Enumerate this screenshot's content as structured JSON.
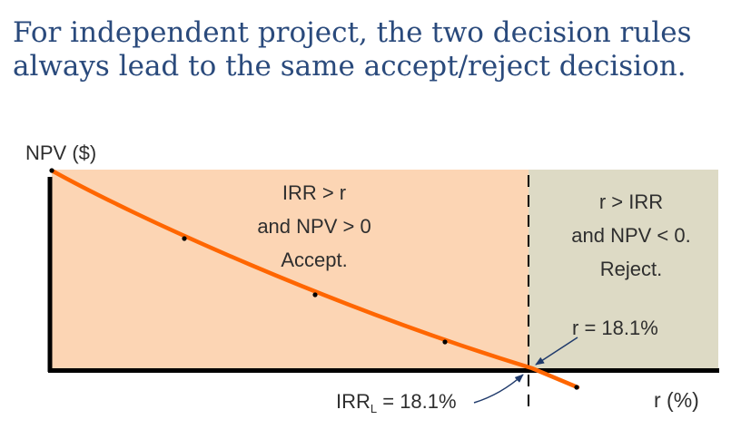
{
  "slide": {
    "title_line1": "For independent project, the two decision rules",
    "title_line2": "always lead to the same accept/reject decision."
  },
  "axes": {
    "y_label": "NPV ($)",
    "x_label": "r (%)"
  },
  "regions": {
    "accept": {
      "line1": "IRR > r",
      "line2": "and NPV > 0",
      "line3": "Accept.",
      "color": "#fcd5b4"
    },
    "reject": {
      "line1": "r > IRR",
      "line2": "and NPV < 0.",
      "line3": "Reject.",
      "color": "#dddac5"
    }
  },
  "annotations": {
    "r_value": "r = 18.1%",
    "irr_prefix": "IRR",
    "irr_subscript": "L",
    "irr_value": " = 18.1%"
  },
  "colors": {
    "title": "#2a4a7c",
    "curve": "#ff6600",
    "axis": "#000000",
    "accept_fill": "#fcd5b4",
    "reject_fill": "#dddac5",
    "label": "#2e2e2e",
    "arrow": "#1f3a6b"
  }
}
